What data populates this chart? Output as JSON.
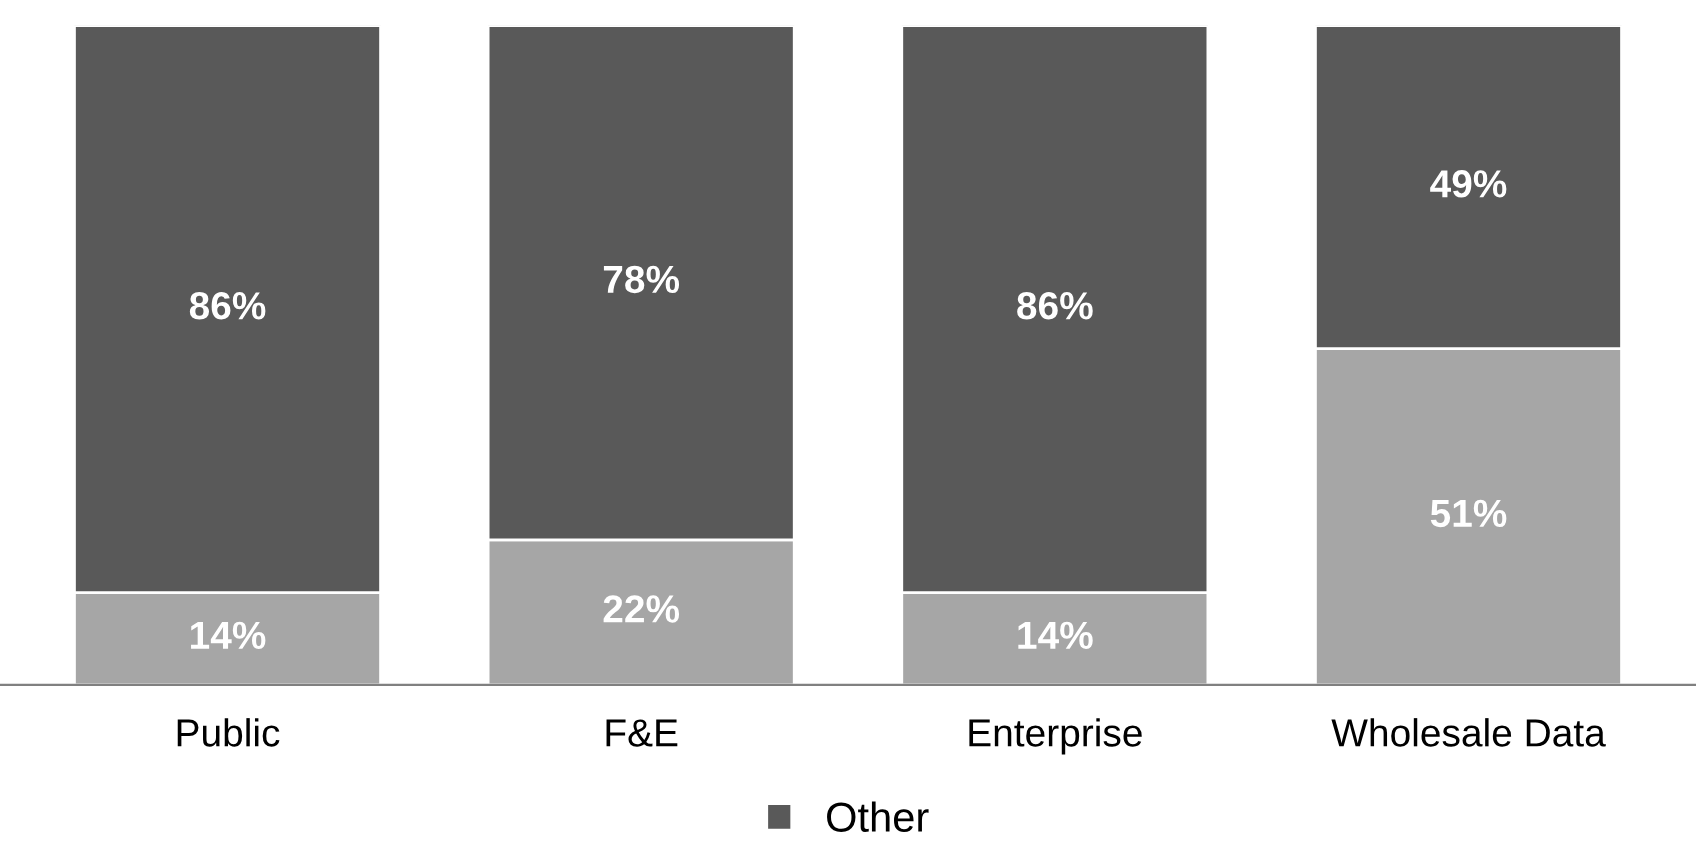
{
  "chart_data": {
    "type": "bar",
    "stacked": true,
    "categories": [
      "Public",
      "F&E",
      "Enterprise",
      "Wholesale Data"
    ],
    "series": [
      {
        "color": "#a6a6a6",
        "values": [
          14,
          22,
          14,
          51
        ],
        "value_labels": [
          "14%",
          "22%",
          "14%",
          "51%"
        ]
      },
      {
        "name": "Other",
        "color": "#595959",
        "values": [
          86,
          78,
          86,
          49
        ],
        "value_labels": [
          "86%",
          "78%",
          "86%",
          "49%"
        ]
      }
    ],
    "legend": "bottom",
    "grid": false
  }
}
